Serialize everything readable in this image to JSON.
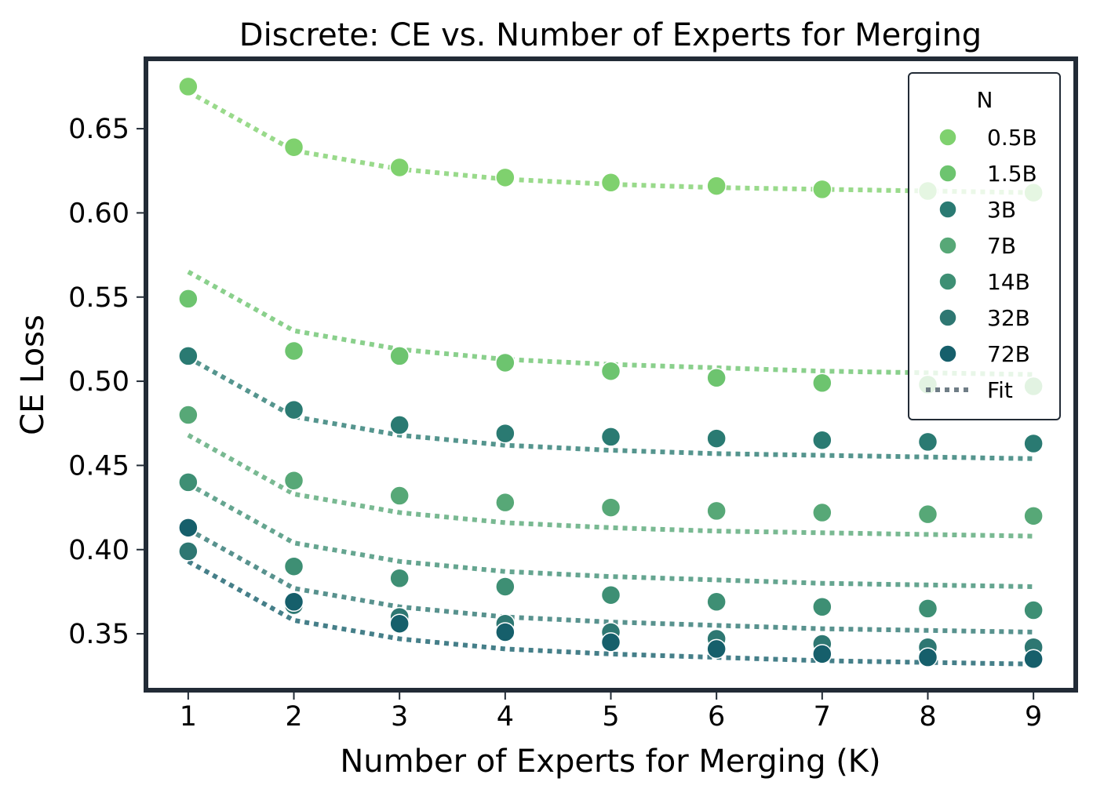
{
  "chart_data": {
    "type": "scatter",
    "title": "Discrete: CE vs. Number of Experts for Merging",
    "xlabel": "Number of Experts for Merging (K)",
    "ylabel": "CE Loss",
    "xlim": [
      0.6,
      9.4
    ],
    "ylim": [
      0.3165,
      0.6915
    ],
    "xticks": [
      1,
      2,
      3,
      4,
      5,
      6,
      7,
      8,
      9
    ],
    "xtick_labels": [
      "1",
      "2",
      "3",
      "4",
      "5",
      "6",
      "7",
      "8",
      "9"
    ],
    "yticks": [
      0.35,
      0.4,
      0.45,
      0.5,
      0.55,
      0.6,
      0.65
    ],
    "ytick_labels": [
      "0.35",
      "0.40",
      "0.45",
      "0.50",
      "0.55",
      "0.60",
      "0.65"
    ],
    "grid": false,
    "legend": {
      "title": "N",
      "position": "top-right",
      "fit_label": "Fit",
      "fit_color": "#6f7d86"
    },
    "x": [
      1,
      2,
      3,
      4,
      5,
      6,
      7,
      8,
      9
    ],
    "series": [
      {
        "name": "0.5B",
        "color": "#7fd16e",
        "values": [
          0.675,
          0.639,
          0.627,
          0.621,
          0.618,
          0.616,
          0.614,
          0.613,
          0.612
        ],
        "fit": [
          0.672,
          0.637,
          0.626,
          0.62,
          0.617,
          0.615,
          0.614,
          0.613,
          0.612
        ]
      },
      {
        "name": "1.5B",
        "color": "#6dc46f",
        "values": [
          0.549,
          0.518,
          0.515,
          0.511,
          0.506,
          0.502,
          0.499,
          0.498,
          0.497
        ],
        "fit": [
          0.565,
          0.53,
          0.519,
          0.513,
          0.51,
          0.508,
          0.506,
          0.505,
          0.504
        ]
      },
      {
        "name": "3B",
        "color": "#2a7a72",
        "values": [
          0.515,
          0.483,
          0.474,
          0.469,
          0.467,
          0.466,
          0.465,
          0.464,
          0.463
        ],
        "fit": [
          0.514,
          0.479,
          0.468,
          0.462,
          0.459,
          0.457,
          0.456,
          0.455,
          0.454
        ]
      },
      {
        "name": "7B",
        "color": "#57a877",
        "values": [
          0.48,
          0.441,
          0.432,
          0.428,
          0.425,
          0.423,
          0.422,
          0.421,
          0.42
        ],
        "fit": [
          0.468,
          0.433,
          0.422,
          0.416,
          0.413,
          0.411,
          0.41,
          0.409,
          0.408
        ]
      },
      {
        "name": "14B",
        "color": "#3e8f74",
        "values": [
          0.44,
          0.39,
          0.383,
          0.378,
          0.373,
          0.369,
          0.366,
          0.365,
          0.364
        ],
        "fit": [
          0.439,
          0.404,
          0.393,
          0.387,
          0.384,
          0.382,
          0.38,
          0.379,
          0.378
        ]
      },
      {
        "name": "32B",
        "color": "#2e7772",
        "values": [
          0.399,
          0.367,
          0.36,
          0.356,
          0.351,
          0.347,
          0.344,
          0.342,
          0.342
        ],
        "fit": [
          0.412,
          0.377,
          0.366,
          0.36,
          0.357,
          0.355,
          0.353,
          0.352,
          0.351
        ]
      },
      {
        "name": "72B",
        "color": "#165f6b",
        "values": [
          0.413,
          0.369,
          0.356,
          0.351,
          0.345,
          0.341,
          0.338,
          0.336,
          0.335
        ],
        "fit": [
          0.393,
          0.358,
          0.347,
          0.341,
          0.338,
          0.336,
          0.334,
          0.333,
          0.332
        ]
      }
    ]
  }
}
